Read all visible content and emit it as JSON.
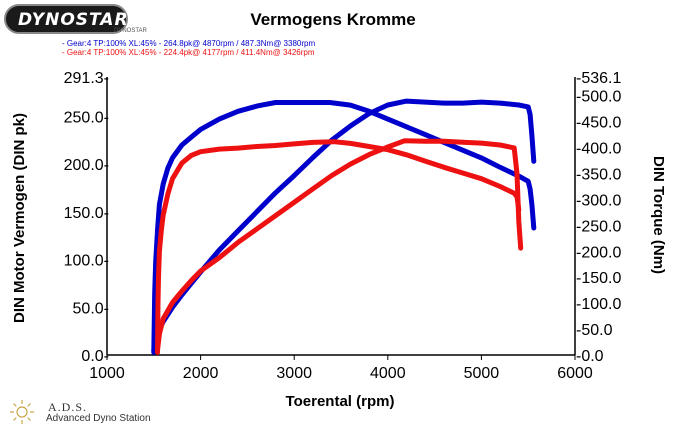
{
  "header": {
    "logo_text": "DYNOSTAR",
    "logo_small": "DYNOSTAR"
  },
  "footer": {
    "title": "A.D.S.",
    "subtitle": "Advanced Dyno Station"
  },
  "colors": {
    "series_1": "#0000cc",
    "series_2": "#ee1111",
    "axis": "#000000"
  },
  "chart_data": {
    "type": "line",
    "title": "Vermogens Kromme",
    "xlabel": "Toerental (rpm)",
    "ylabel_left": "DIN Motor Vermogen (DIN pk)",
    "ylabel_right": "DIN Torque (Nm)",
    "xlim": [
      1000,
      6000
    ],
    "ylim_left": [
      0,
      291.3
    ],
    "ylim_right": [
      0,
      536.1
    ],
    "x_ticks": [
      "1000",
      "2000",
      "3000",
      "4000",
      "5000",
      "6000"
    ],
    "y_left_ticks": [
      {
        "v": 0,
        "label": "0.0-"
      },
      {
        "v": 50,
        "label": "50.0-"
      },
      {
        "v": 100,
        "label": "100.0-"
      },
      {
        "v": 150,
        "label": "150.0-"
      },
      {
        "v": 200,
        "label": "200.0-"
      },
      {
        "v": 250,
        "label": "250.0-"
      },
      {
        "v": 291.3,
        "label": "291.3-"
      }
    ],
    "y_right_ticks": [
      {
        "v": 0,
        "label": "-0.0"
      },
      {
        "v": 50,
        "label": "-50.0"
      },
      {
        "v": 100,
        "label": "-100.0"
      },
      {
        "v": 150,
        "label": "-150.0"
      },
      {
        "v": 200,
        "label": "-200.0"
      },
      {
        "v": 250,
        "label": "-250.0"
      },
      {
        "v": 300,
        "label": "-300.0"
      },
      {
        "v": 350,
        "label": "-350.0"
      },
      {
        "v": 400,
        "label": "-400.0"
      },
      {
        "v": 450,
        "label": "-450.0"
      },
      {
        "v": 500,
        "label": "-500.0"
      },
      {
        "v": 536.1,
        "label": "-536.1"
      }
    ],
    "grid": false,
    "legend": [
      {
        "text": "- Gear:4 TP:100% XL:45%   - 264.8pk@ 4870rpm / 487.3Nm@ 3380rpm",
        "color": "#0000cc"
      },
      {
        "text": "- Gear:4 TP:100% XL:45%   - 224.4pk@ 4177rpm / 411.4Nm@ 3426rpm",
        "color": "#ee1111"
      }
    ],
    "series": [
      {
        "color": "#0000cc",
        "axis": "left",
        "x": [
          1500,
          1520,
          1550,
          1600,
          1700,
          1800,
          1900,
          2000,
          2200,
          2400,
          2600,
          2800,
          3000,
          3200,
          3400,
          3600,
          3800,
          4000,
          4200,
          4400,
          4600,
          4800,
          5000,
          5200,
          5400,
          5500,
          5520,
          5540,
          5560
        ],
        "values": [
          5,
          15,
          25,
          35,
          50,
          63,
          75,
          87,
          110,
          130,
          150,
          170,
          188,
          207,
          225,
          240,
          253,
          262,
          266,
          265,
          264,
          264,
          265,
          264,
          262,
          260,
          252,
          230,
          203
        ]
      },
      {
        "color": "#0000cc",
        "axis": "right",
        "x": [
          1500,
          1510,
          1520,
          1540,
          1560,
          1600,
          1650,
          1700,
          1800,
          1900,
          2000,
          2200,
          2400,
          2600,
          2800,
          3000,
          3200,
          3380,
          3600,
          3800,
          4000,
          4200,
          4400,
          4600,
          4800,
          5000,
          5200,
          5400,
          5500,
          5520,
          5540,
          5560
        ],
        "values": [
          5,
          120,
          180,
          240,
          290,
          330,
          360,
          380,
          405,
          420,
          435,
          455,
          470,
          480,
          487,
          487,
          487,
          487,
          482,
          470,
          455,
          440,
          425,
          410,
          395,
          380,
          362,
          345,
          335,
          320,
          290,
          245
        ]
      },
      {
        "color": "#ee1111",
        "axis": "left",
        "x": [
          1540,
          1560,
          1600,
          1700,
          1800,
          1900,
          2000,
          2200,
          2400,
          2600,
          2800,
          3000,
          3200,
          3400,
          3600,
          3800,
          4000,
          4177,
          4400,
          4600,
          4800,
          5000,
          5200,
          5350,
          5380,
          5400,
          5420
        ],
        "values": [
          5,
          22,
          38,
          55,
          67,
          78,
          88,
          102,
          118,
          132,
          146,
          160,
          174,
          188,
          200,
          210,
          218,
          224.4,
          224,
          224,
          223,
          222,
          220,
          217,
          190,
          140,
          112
        ]
      },
      {
        "color": "#ee1111",
        "axis": "right",
        "x": [
          1540,
          1545,
          1550,
          1560,
          1580,
          1600,
          1650,
          1700,
          1800,
          1900,
          2000,
          2200,
          2400,
          2600,
          2800,
          3000,
          3200,
          3426,
          3600,
          3800,
          4000,
          4200,
          4400,
          4600,
          4800,
          5000,
          5200,
          5350,
          5380,
          5400
        ],
        "values": [
          5,
          100,
          150,
          200,
          240,
          270,
          310,
          340,
          370,
          385,
          392,
          397,
          399,
          402,
          404,
          407,
          410,
          411.4,
          408,
          402,
          396,
          386,
          374,
          362,
          351,
          340,
          325,
          312,
          305,
          280
        ]
      }
    ]
  }
}
